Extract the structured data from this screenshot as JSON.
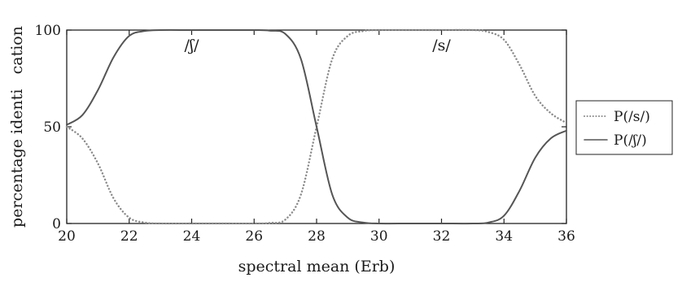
{
  "chart_data": {
    "type": "line",
    "xlabel": "spectral mean (Erb)",
    "ylabel": "percentage identi   cation",
    "xlim": [
      20,
      36
    ],
    "ylim": [
      0,
      100
    ],
    "xticks": [
      "20",
      "22",
      "24",
      "26",
      "28",
      "30",
      "32",
      "34",
      "36"
    ],
    "yticks": [
      "0",
      "50",
      "100"
    ],
    "grid": false,
    "legend_position": "right",
    "annotations": [
      {
        "text": "/ʃ/",
        "x": 24,
        "y": 92
      },
      {
        "text": "/s/",
        "x": 32,
        "y": 92
      }
    ],
    "series": [
      {
        "name": "P(/s/)",
        "style": "dotted",
        "color": "#8a8a8a",
        "x": [
          20,
          20.5,
          21,
          21.5,
          22,
          22.5,
          23,
          24,
          25,
          26,
          26.5,
          27,
          27.5,
          28,
          28.5,
          29,
          29.5,
          30,
          31,
          32,
          33,
          33.5,
          34,
          34.5,
          35,
          35.5,
          36
        ],
        "y": [
          50,
          44,
          31,
          13,
          3,
          0.5,
          0,
          0,
          0,
          0,
          0.3,
          2,
          15,
          50,
          85,
          97,
          99.5,
          100,
          100,
          100,
          100,
          99,
          95,
          82,
          66,
          57,
          52
        ]
      },
      {
        "name": "P(/ʃ/)",
        "style": "solid",
        "color": "#555555",
        "x": [
          20,
          20.5,
          21,
          21.5,
          22,
          22.5,
          23,
          24,
          25,
          26,
          26.5,
          27,
          27.5,
          28,
          28.5,
          29,
          29.5,
          30,
          31,
          32,
          33,
          33.5,
          34,
          34.5,
          35,
          35.5,
          36
        ],
        "y": [
          51,
          56,
          69,
          86,
          97,
          99.5,
          100,
          100,
          100,
          100,
          99.7,
          98,
          85,
          50,
          15,
          3,
          0.5,
          0,
          0,
          0,
          0,
          0.5,
          4,
          17,
          34,
          44,
          48
        ]
      }
    ]
  }
}
